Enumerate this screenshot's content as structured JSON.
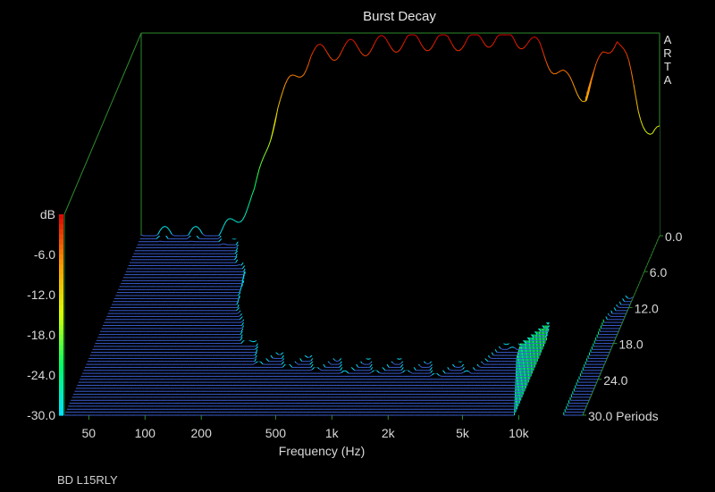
{
  "window": {
    "title": "Burst Decay"
  },
  "brand": {
    "letters": [
      "A",
      "R",
      "T",
      "A"
    ]
  },
  "footer": {
    "caption": "BD L15RLY"
  },
  "chart_data": {
    "type": "waterfall",
    "title": "Burst Decay",
    "xlabel": "Frequency (Hz)",
    "zlabel": "dB",
    "x_scale": "log",
    "xlim_hz": [
      37,
      22000
    ],
    "x_ticks": [
      {
        "value": 50,
        "label": "50"
      },
      {
        "value": 100,
        "label": "100"
      },
      {
        "value": 200,
        "label": "200"
      },
      {
        "value": 500,
        "label": "500"
      },
      {
        "value": 1000,
        "label": "1k"
      },
      {
        "value": 2000,
        "label": "2k"
      },
      {
        "value": 5000,
        "label": "5k"
      },
      {
        "value": 10000,
        "label": "10k"
      }
    ],
    "db_range": [
      -30,
      0
    ],
    "db_ticks": [
      {
        "value": 0,
        "label": "dB"
      },
      {
        "value": -6,
        "label": "-6.0"
      },
      {
        "value": -12,
        "label": "-12.0"
      },
      {
        "value": -18,
        "label": "-18.0"
      },
      {
        "value": -24,
        "label": "-24.0"
      },
      {
        "value": -30,
        "label": "-30.0"
      }
    ],
    "periods_range": [
      0,
      30
    ],
    "period_ticks": [
      {
        "value": 0,
        "label": "0.0"
      },
      {
        "value": 6,
        "label": "6.0"
      },
      {
        "value": 12,
        "label": "12.0"
      },
      {
        "value": 18,
        "label": "18.0"
      },
      {
        "value": 24,
        "label": "24.0"
      },
      {
        "value": 30,
        "label": "30.0 Periods"
      }
    ],
    "colormap": [
      "#00e0ff",
      "#00ff66",
      "#d8ff00",
      "#ff9900",
      "#e00000"
    ],
    "floor_color": "#3a5ed0",
    "slice_count": 60,
    "response_at_period_0": [
      [
        50,
        -30
      ],
      [
        100,
        -30
      ],
      [
        150,
        -24
      ],
      [
        200,
        -10
      ],
      [
        300,
        -3
      ],
      [
        500,
        -2
      ],
      [
        700,
        -1.5
      ],
      [
        1000,
        -1
      ],
      [
        2000,
        -1
      ],
      [
        3500,
        0
      ],
      [
        5000,
        -2
      ],
      [
        7000,
        -7
      ],
      [
        9000,
        -9
      ],
      [
        11000,
        -3
      ],
      [
        13000,
        0
      ],
      [
        15000,
        -5
      ],
      [
        17000,
        -11
      ],
      [
        20000,
        -15
      ]
    ]
  }
}
